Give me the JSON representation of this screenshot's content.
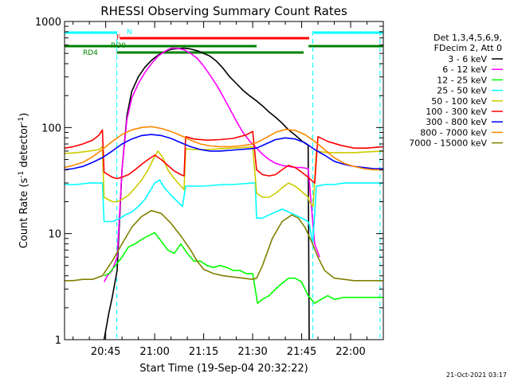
{
  "chart_data": {
    "type": "line",
    "title": "RHESSI Observing Summary Count Rates",
    "xlabel": "Start Time (19-Sep-04 20:32:22)",
    "ylabel": "Count Rate (s",
    "ylabel_sup1": "-1",
    "ylabel_mid": " detector",
    "ylabel_sup2": "-1",
    "ylabel_end": ")",
    "yscale": "log",
    "ylim": [
      1,
      1000
    ],
    "xlim_minutes": [
      32.4,
      130.0
    ],
    "x_unit": "minutes after 20:00 UT",
    "x_ticks": [
      {
        "value": 45,
        "label": "20:45"
      },
      {
        "value": 60,
        "label": "21:00"
      },
      {
        "value": 75,
        "label": "21:15"
      },
      {
        "value": 90,
        "label": "21:30"
      },
      {
        "value": 105,
        "label": "21:45"
      },
      {
        "value": 120,
        "label": "22:00"
      }
    ],
    "y_ticks": [
      {
        "value": 1,
        "label": "1"
      },
      {
        "value": 10,
        "label": "10"
      },
      {
        "value": 100,
        "label": "100"
      },
      {
        "value": 1000,
        "label": "1000"
      }
    ],
    "legend_header": [
      "Det 1,3,4,5,6,9,",
      "FDecim 2, Att 0"
    ],
    "legend_placement": "right, outside plot",
    "timestamp": "21-Oct-2021 03:17",
    "flags": [
      {
        "label": "N",
        "color": "#00ffff",
        "segments": [
          [
            32.4,
            48.5
          ],
          [
            108.6,
            130
          ]
        ]
      },
      {
        "label": "F",
        "color": "#ff0000",
        "segments": [
          [
            49.3,
            107.3
          ]
        ]
      },
      {
        "label": "RD0",
        "color": "#008000",
        "segments": [
          [
            32.4,
            91.2
          ],
          [
            107.1,
            130
          ]
        ]
      },
      {
        "label": "RD4",
        "color": "#008000",
        "segments": [
          [
            48.4,
            105.6
          ]
        ]
      }
    ],
    "night_markers": [
      48.4,
      108.4,
      129.0
    ],
    "series": [
      {
        "name": "3 - 6 keV",
        "color": "#000000",
        "x": [
          44.5,
          46.0,
          47.0,
          48.5,
          50.0,
          51.5,
          53.0,
          55.0,
          57.0,
          59.0,
          61.0,
          63.0,
          65.0,
          67.0,
          69.0,
          71.0,
          73.0,
          75.0,
          77.0,
          79.0,
          81.0,
          83.0,
          85.0,
          87.0,
          89.0,
          91.0,
          93.0,
          95.0,
          97.0,
          99.0,
          101.0,
          103.0,
          105.0,
          107.0,
          107.3
        ],
        "y": [
          1.0,
          1.8,
          2.5,
          4.5,
          40,
          130,
          220,
          300,
          370,
          430,
          480,
          520,
          545,
          555,
          560,
          550,
          530,
          500,
          470,
          420,
          360,
          300,
          260,
          225,
          200,
          180,
          160,
          140,
          125,
          110,
          95,
          85,
          75,
          68,
          1.0
        ]
      },
      {
        "name": "6 - 12 keV",
        "color": "#ff00ff",
        "x": [
          44.5,
          45.5,
          47.0,
          48.5,
          50.0,
          51.5,
          53.0,
          55.0,
          57.0,
          59.0,
          61.0,
          63.0,
          65.0,
          67.0,
          69.0,
          71.0,
          73.0,
          75.0,
          77.0,
          79.0,
          81.0,
          83.0,
          85.0,
          87.0,
          89.0,
          91.0,
          93.0,
          95.0,
          97.0,
          99.0,
          101.0,
          103.0,
          105.0,
          107.0,
          109.0,
          110.5
        ],
        "y": [
          3.5,
          4.0,
          4.5,
          6.0,
          40,
          120,
          190,
          260,
          330,
          400,
          470,
          520,
          560,
          560,
          540,
          500,
          450,
          380,
          310,
          250,
          195,
          150,
          115,
          90,
          75,
          65,
          56,
          50,
          46,
          44,
          43,
          42,
          42,
          41,
          8,
          6
        ]
      },
      {
        "name": "12 - 25 keV",
        "color": "#00ff00",
        "x": [
          44.5,
          46.0,
          48.0,
          50.0,
          52.0,
          54.0,
          56.0,
          58.0,
          60.0,
          62.0,
          64.0,
          66.0,
          68.0,
          70.0,
          72.0,
          74.0,
          76.0,
          78.0,
          80.0,
          82.0,
          84.0,
          86.0,
          88.0,
          90.0,
          91.5,
          93.0,
          95.0,
          97.0,
          99.0,
          101.0,
          103.0,
          105.0,
          107.0,
          109.0,
          111.0,
          113.0,
          115.0,
          118.0,
          121.0,
          124.0,
          127.0,
          130.0
        ],
        "y": [
          4.0,
          4.2,
          5.0,
          6.0,
          7.5,
          8.0,
          8.8,
          9.5,
          10.2,
          8.5,
          7.0,
          6.5,
          8.0,
          6.5,
          5.5,
          5.5,
          5.0,
          4.8,
          5.0,
          4.8,
          4.5,
          4.5,
          4.2,
          4.2,
          2.2,
          2.4,
          2.6,
          3.0,
          3.4,
          3.8,
          3.8,
          3.5,
          2.6,
          2.2,
          2.4,
          2.6,
          2.4,
          2.5,
          2.5,
          2.5,
          2.5,
          2.5
        ]
      },
      {
        "name": "25 - 50 keV",
        "color": "#00ffff",
        "x": [
          32.4,
          36.0,
          40.0,
          44.0,
          44.5,
          47.0,
          48.5,
          49.5,
          51.0,
          53.0,
          55.0,
          57.0,
          58.5,
          60.0,
          61.5,
          63.0,
          65.0,
          67.0,
          68.5,
          69.5,
          72.0,
          75.0,
          78.0,
          81.0,
          84.0,
          87.0,
          90.0,
          90.8,
          91.2,
          93.0,
          95.0,
          97.0,
          99.0,
          101.0,
          103.0,
          105.0,
          107.0,
          107.4,
          108.4,
          109.5,
          112.0,
          115.0,
          118.0,
          121.0,
          124.0,
          127.0,
          130.0
        ],
        "y": [
          29,
          29,
          30,
          30,
          13,
          13,
          13.5,
          14,
          15,
          16,
          18,
          21,
          25,
          30,
          32,
          27,
          23,
          20,
          18,
          28,
          28,
          28,
          28.5,
          29,
          29,
          29.5,
          30,
          30,
          14,
          14,
          15,
          16,
          17,
          16,
          15,
          14,
          13,
          12,
          8,
          28,
          29,
          29,
          30,
          30,
          30,
          30,
          30
        ]
      },
      {
        "name": "50 - 100 keV",
        "color": "#cccc00",
        "x": [
          32.4,
          36.0,
          40.0,
          43.0,
          44.0,
          44.5,
          47.0,
          48.5,
          50.0,
          52.0,
          54.0,
          56.0,
          58.0,
          59.5,
          61.0,
          62.5,
          64.0,
          66.0,
          68.0,
          69.0,
          69.5,
          72.0,
          76.0,
          80.0,
          84.0,
          88.0,
          90.0,
          91.2,
          93.0,
          95.0,
          97.0,
          99.0,
          101.0,
          103.0,
          105.0,
          107.0,
          107.4,
          108.5,
          109.5,
          113.0,
          117.0,
          121.0,
          125.0,
          130.0
        ],
        "y": [
          57,
          58,
          60,
          62,
          66,
          22,
          20,
          20,
          21,
          23,
          27,
          32,
          40,
          50,
          60,
          52,
          40,
          33,
          28,
          26,
          63,
          62,
          62,
          63,
          64,
          65,
          66,
          24,
          22,
          22,
          24,
          27,
          30,
          28,
          25,
          22,
          20,
          18,
          60,
          58,
          58,
          58,
          59,
          60
        ]
      },
      {
        "name": "100 - 300 keV",
        "color": "#ff0000",
        "x": [
          32.4,
          35.0,
          38.0,
          41.0,
          43.0,
          44.0,
          44.5,
          47.0,
          48.5,
          50.0,
          52.0,
          54.0,
          56.0,
          58.0,
          60.0,
          62.0,
          64.0,
          66.0,
          68.0,
          69.0,
          69.5,
          72.0,
          76.0,
          80.0,
          84.0,
          88.0,
          90.0,
          91.2,
          93.0,
          95.0,
          97.0,
          99.0,
          101.0,
          103.0,
          105.0,
          107.0,
          107.4,
          109.0,
          110.0,
          113.0,
          117.0,
          121.0,
          125.0,
          130.0
        ],
        "y": [
          64,
          66,
          70,
          76,
          85,
          95,
          38,
          34,
          33,
          34,
          36,
          40,
          45,
          50,
          55,
          50,
          44,
          39,
          36,
          35,
          82,
          78,
          76,
          77,
          79,
          85,
          92,
          40,
          36,
          35,
          36,
          40,
          44,
          42,
          38,
          34,
          33,
          30,
          82,
          74,
          68,
          64,
          64,
          66
        ]
      },
      {
        "name": "300 - 800 keV",
        "color": "#0000ff",
        "x": [
          32.4,
          35.0,
          38.0,
          41.0,
          44.0,
          47.0,
          50.0,
          53.0,
          56.0,
          59.0,
          62.0,
          65.0,
          68.0,
          71.0,
          74.0,
          77.0,
          80.0,
          83.0,
          86.0,
          89.0,
          91.2,
          94.0,
          97.0,
          100.0,
          103.0,
          106.0,
          109.0,
          112.0,
          115.0,
          118.0,
          121.0,
          124.0,
          127.0,
          130.0
        ],
        "y": [
          40,
          41,
          43,
          47,
          52,
          60,
          70,
          78,
          84,
          86,
          84,
          79,
          72,
          66,
          62,
          60,
          60,
          61,
          62,
          63,
          64,
          70,
          77,
          80,
          78,
          72,
          62,
          55,
          48,
          45,
          43,
          42,
          41,
          41
        ]
      },
      {
        "name": "800 - 7000 keV",
        "color": "#ff8800",
        "x": [
          32.4,
          35.0,
          38.0,
          41.0,
          44.0,
          47.0,
          50.0,
          53.0,
          56.0,
          59.0,
          62.0,
          65.0,
          68.0,
          71.0,
          74.0,
          77.0,
          80.0,
          83.0,
          86.0,
          89.0,
          91.2,
          94.0,
          97.0,
          100.0,
          103.0,
          106.0,
          109.0,
          112.0,
          115.0,
          118.0,
          121.0,
          124.0,
          127.0,
          130.0
        ],
        "y": [
          42,
          44,
          47,
          53,
          62,
          74,
          86,
          95,
          100,
          102,
          98,
          92,
          84,
          76,
          70,
          67,
          66,
          66,
          67,
          69,
          72,
          80,
          90,
          96,
          94,
          86,
          74,
          62,
          52,
          46,
          43,
          41,
          40,
          40
        ]
      },
      {
        "name": "7000 - 15000 keV",
        "color": "#808000",
        "x": [
          32.4,
          35.0,
          38.0,
          41.0,
          44.0,
          47.0,
          50.0,
          53.0,
          56.0,
          59.0,
          62.0,
          65.0,
          68.0,
          71.0,
          73.0,
          75.0,
          78.0,
          81.0,
          84.0,
          87.0,
          90.0,
          91.2,
          93.0,
          96.0,
          99.0,
          102.0,
          104.0,
          106.0,
          108.0,
          110.0,
          112.0,
          115.0,
          118.0,
          121.0,
          124.0,
          127.0,
          130.0
        ],
        "y": [
          3.6,
          3.6,
          3.7,
          3.7,
          4.0,
          5.5,
          8.0,
          11.5,
          14.5,
          16.5,
          15.5,
          12.5,
          9.5,
          7.0,
          5.5,
          4.6,
          4.2,
          4.0,
          3.9,
          3.8,
          3.7,
          3.8,
          5.0,
          9.0,
          13.0,
          15.0,
          14.0,
          11.5,
          8.5,
          6.0,
          4.5,
          3.8,
          3.7,
          3.6,
          3.6,
          3.6,
          3.6
        ]
      }
    ]
  }
}
